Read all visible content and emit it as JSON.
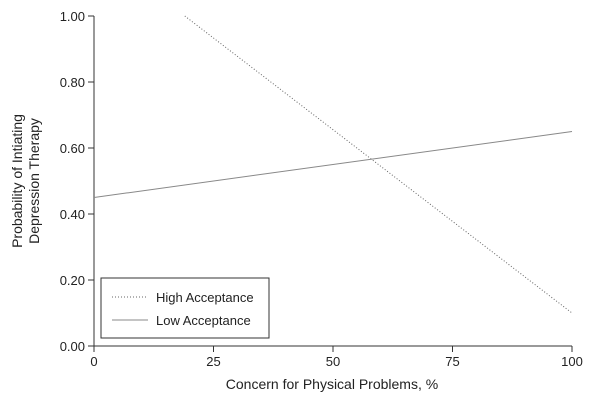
{
  "chart_data": {
    "type": "line",
    "title": "",
    "xlabel": "Concern for Physical Problems, %",
    "ylabel_lines": [
      "Probability of Intiating",
      "Depression Therapy"
    ],
    "xlim": [
      0,
      100
    ],
    "ylim": [
      0,
      1
    ],
    "x_ticks": [
      0,
      25,
      50,
      75,
      100
    ],
    "x_tick_labels": [
      "0",
      "25",
      "50",
      "75",
      "100"
    ],
    "y_ticks": [
      0,
      0.2,
      0.4,
      0.6,
      0.8,
      1.0
    ],
    "y_tick_labels": [
      "0.00",
      "0.20",
      "0.40",
      "0.60",
      "0.80",
      "1.00"
    ],
    "grid": false,
    "legend_position": "bottom-left",
    "series": [
      {
        "name": "High Acceptance",
        "style": "dotted",
        "color": "#666666",
        "x": [
          19,
          100
        ],
        "y": [
          1.0,
          0.1
        ]
      },
      {
        "name": "Low Acceptance",
        "style": "solid",
        "color": "#888888",
        "x": [
          0,
          100
        ],
        "y": [
          0.45,
          0.65
        ]
      }
    ]
  }
}
